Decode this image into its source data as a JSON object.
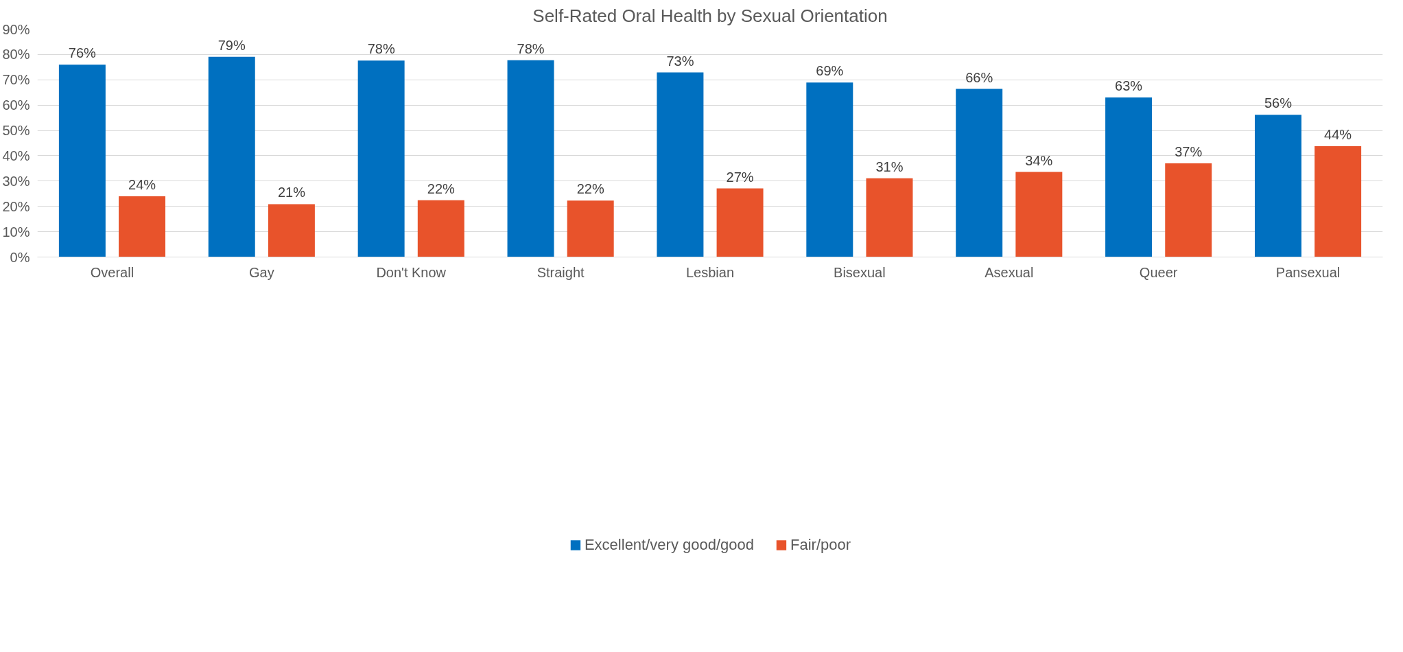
{
  "chart_data": {
    "type": "bar",
    "title": "Self-Rated Oral Health by Sexual Orientation",
    "categories": [
      "Overall",
      "Gay",
      "Don't Know",
      "Straight",
      "Lesbian",
      "Bisexual",
      "Asexual",
      "Queer",
      "Pansexual"
    ],
    "series": [
      {
        "name": "Excellent/very good/good",
        "color": "#0070c0",
        "values": [
          76,
          79.1,
          77.6,
          77.7,
          72.9,
          68.9,
          66.4,
          63,
          56.2
        ],
        "value_labels": [
          "76%",
          "79%",
          "78%",
          "78%",
          "73%",
          "69%",
          "66%",
          "63%",
          "56%"
        ]
      },
      {
        "name": "Fair/poor",
        "color": "#e8532b",
        "values": [
          24,
          20.9,
          22.4,
          22.3,
          27.1,
          31.1,
          33.6,
          37,
          43.8
        ],
        "value_labels": [
          "24%",
          "21%",
          "22%",
          "22%",
          "27%",
          "31%",
          "34%",
          "37%",
          "44%"
        ]
      }
    ],
    "ylim": [
      0,
      90
    ],
    "yticks": [
      {
        "value": 0,
        "label": "0%"
      },
      {
        "value": 10,
        "label": "10%"
      },
      {
        "value": 20,
        "label": "20%"
      },
      {
        "value": 30,
        "label": "30%"
      },
      {
        "value": 40,
        "label": "40%"
      },
      {
        "value": 50,
        "label": "50%"
      },
      {
        "value": 60,
        "label": "60%"
      },
      {
        "value": 70,
        "label": "70%"
      },
      {
        "value": 80,
        "label": "80%"
      },
      {
        "value": 90,
        "label": "90%"
      }
    ],
    "grid": "y",
    "legend": "bottom"
  }
}
